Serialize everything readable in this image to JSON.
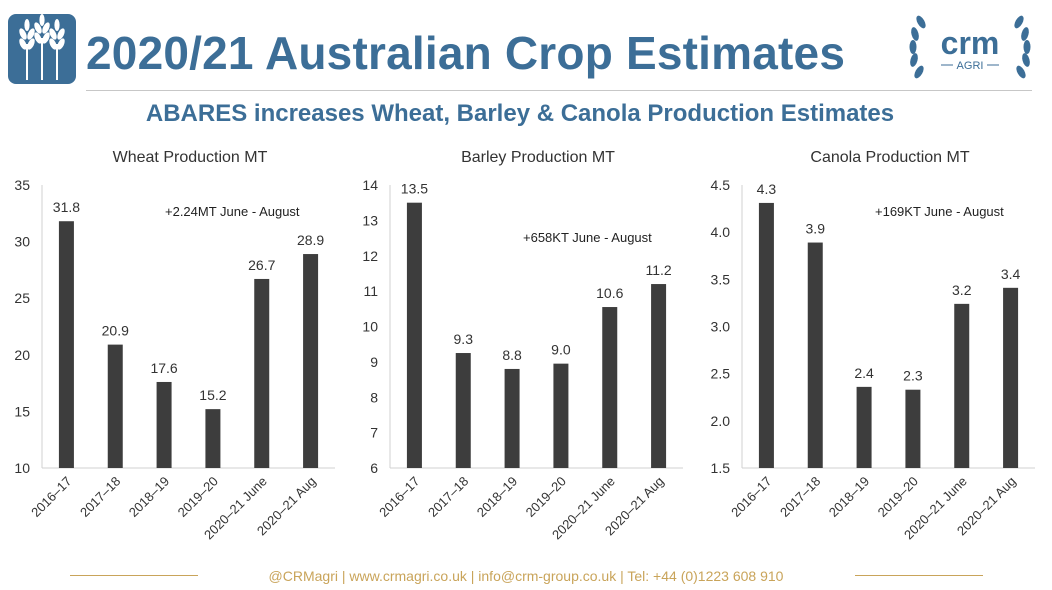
{
  "header": {
    "title": "2020/21 Australian Crop Estimates",
    "subtitle": "ABARES increases Wheat, Barley & Canola Production Estimates",
    "brand_text": "crm",
    "brand_sub": "AGRI",
    "wheat_icon": "wheat-icon"
  },
  "footer": {
    "text": "@CRMagri | www.crmagri.co.uk | info@crm-group.co.uk | Tel: +44 (0)1223 608 910"
  },
  "colors": {
    "brand_blue": "#3c6e97",
    "bar": "#3d3d3d",
    "accent_gold": "#c9a45a",
    "text": "#333333"
  },
  "chart_data": [
    {
      "type": "bar",
      "title": "Wheat Production MT",
      "categories": [
        "2016–17",
        "2017–18",
        "2018–19",
        "2019–20",
        "2020–21 June",
        "2020–21 Aug"
      ],
      "values": [
        31.8,
        20.9,
        17.6,
        15.2,
        26.7,
        28.9
      ],
      "data_labels": [
        "31.8",
        "20.9",
        "17.6",
        "15.2",
        "26.7",
        "28.9"
      ],
      "ylim": [
        10,
        35
      ],
      "yticks": [
        "10",
        "15",
        "20",
        "25",
        "30",
        "35"
      ],
      "annotation": "+2.24MT June - August",
      "xlabel": "",
      "ylabel": "",
      "grid": false
    },
    {
      "type": "bar",
      "title": "Barley Production MT",
      "categories": [
        "2016–17",
        "2017–18",
        "2018–19",
        "2019–20",
        "2020–21 June",
        "2020–21 Aug"
      ],
      "values": [
        13.5,
        9.25,
        8.8,
        8.95,
        10.55,
        11.2
      ],
      "data_labels": [
        "13.5",
        "9.3",
        "8.8",
        "9.0",
        "10.6",
        "11.2"
      ],
      "ylim": [
        6,
        14
      ],
      "yticks": [
        "6",
        "7",
        "8",
        "9",
        "10",
        "11",
        "12",
        "13",
        "14"
      ],
      "annotation": "+658KT June - August",
      "xlabel": "",
      "ylabel": "",
      "grid": false
    },
    {
      "type": "bar",
      "title": "Canola Production MT",
      "categories": [
        "2016–17",
        "2017–18",
        "2018–19",
        "2019–20",
        "2020–21 June",
        "2020–21 Aug"
      ],
      "values": [
        4.31,
        3.89,
        2.36,
        2.33,
        3.24,
        3.41
      ],
      "data_labels": [
        "4.3",
        "3.9",
        "2.4",
        "2.3",
        "3.2",
        "3.4"
      ],
      "ylim": [
        1.5,
        4.5
      ],
      "yticks": [
        "1.5",
        "2.0",
        "2.5",
        "3.0",
        "3.5",
        "4.0",
        "4.5"
      ],
      "annotation": "+169KT June - August",
      "xlabel": "",
      "ylabel": "",
      "grid": false
    }
  ]
}
